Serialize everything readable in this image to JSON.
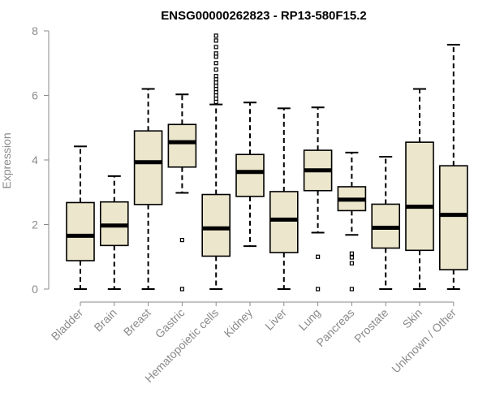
{
  "chart_data": {
    "type": "box",
    "title": "ENSG00000262823 - RP13-580F15.2",
    "ylabel": "Expression",
    "xlabel": "",
    "ylim": [
      0,
      8
    ],
    "yticks": [
      "0",
      "2",
      "4",
      "6",
      "8"
    ],
    "grid": false,
    "colors": {
      "box_fill": "#ece6cc",
      "stroke": "#000000",
      "axis": "#8a8a8a"
    },
    "categories": [
      {
        "name": "Bladder",
        "min": 0,
        "q1": 0.88,
        "median": 1.65,
        "q3": 2.68,
        "max": 4.42,
        "outliers": []
      },
      {
        "name": "Brain",
        "min": 0,
        "q1": 1.35,
        "median": 1.97,
        "q3": 2.7,
        "max": 3.5,
        "outliers": []
      },
      {
        "name": "Breast",
        "min": 0,
        "q1": 2.62,
        "median": 3.93,
        "q3": 4.9,
        "max": 6.2,
        "outliers": []
      },
      {
        "name": "Gastric",
        "min": 2.98,
        "q1": 3.78,
        "median": 4.55,
        "q3": 5.1,
        "max": 6.03,
        "outliers": [
          1.52,
          0.0
        ]
      },
      {
        "name": "Hematopoietic cells",
        "min": 0,
        "q1": 1.02,
        "median": 1.88,
        "q3": 2.93,
        "max": 5.72,
        "outliers": [
          5.8,
          5.9,
          6.0,
          6.1,
          6.2,
          6.3,
          6.4,
          6.5,
          6.6,
          6.8,
          7.0,
          7.2,
          7.3,
          7.5,
          7.7,
          7.85
        ]
      },
      {
        "name": "Kidney",
        "min": 1.33,
        "q1": 2.87,
        "median": 3.63,
        "q3": 4.17,
        "max": 5.78,
        "outliers": []
      },
      {
        "name": "Liver",
        "min": 0,
        "q1": 1.13,
        "median": 2.15,
        "q3": 3.02,
        "max": 5.6,
        "outliers": []
      },
      {
        "name": "Lung",
        "min": 1.75,
        "q1": 3.05,
        "median": 3.68,
        "q3": 4.3,
        "max": 5.63,
        "outliers": [
          1.0,
          0.0
        ]
      },
      {
        "name": "Pancreas",
        "min": 1.68,
        "q1": 2.43,
        "median": 2.77,
        "q3": 3.17,
        "max": 4.23,
        "outliers": [
          1.1,
          0.98,
          0.8,
          0.0
        ]
      },
      {
        "name": "Prostate",
        "min": 0,
        "q1": 1.27,
        "median": 1.9,
        "q3": 2.63,
        "max": 4.1,
        "outliers": []
      },
      {
        "name": "Skin",
        "min": 0,
        "q1": 1.2,
        "median": 2.55,
        "q3": 4.55,
        "max": 6.2,
        "outliers": []
      },
      {
        "name": "Unknown / Other",
        "min": 0,
        "q1": 0.6,
        "median": 2.3,
        "q3": 3.82,
        "max": 7.57,
        "outliers": []
      }
    ]
  }
}
